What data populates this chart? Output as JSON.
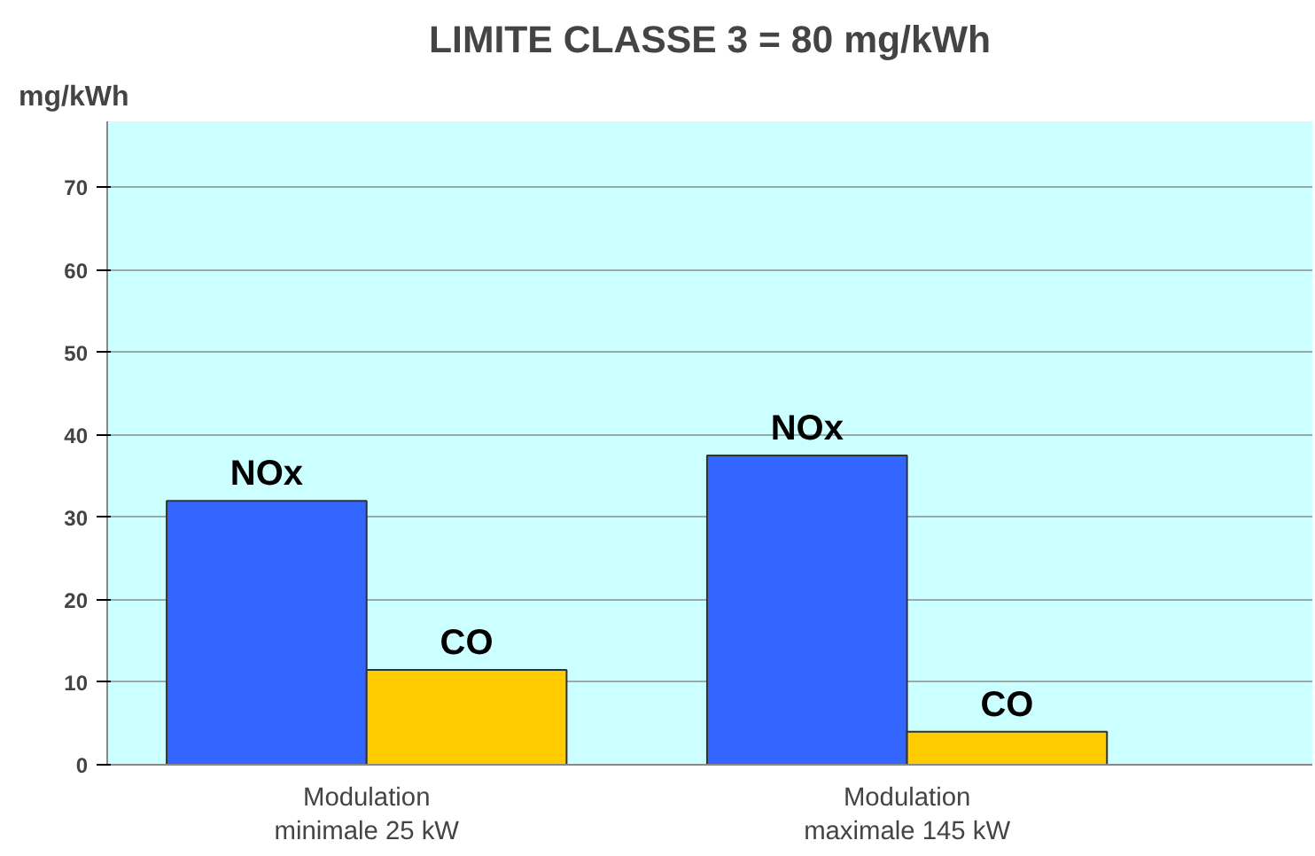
{
  "chart_data": {
    "type": "bar",
    "title": "LIMITE CLASSE 3 = 80 mg/kWh",
    "ylabel": "mg/kWh",
    "categories": [
      "Modulation\nminimale 25 kW",
      "Modulation\nmaximale 145 kW"
    ],
    "series": [
      {
        "name": "NOx",
        "color": "#3366ff",
        "values": [
          32,
          37.5
        ]
      },
      {
        "name": "CO",
        "color": "#ffcc00",
        "values": [
          11.5,
          4
        ]
      }
    ],
    "ylim": [
      0,
      78
    ],
    "yticks": [
      0,
      10,
      20,
      30,
      40,
      50,
      60,
      70
    ],
    "grid": "y"
  }
}
